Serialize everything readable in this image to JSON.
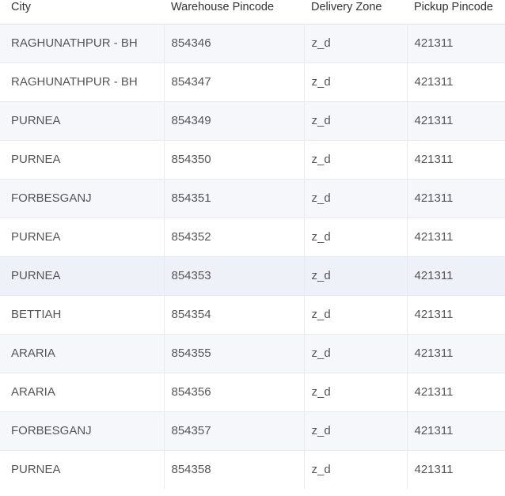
{
  "table": {
    "headers": {
      "city": "City",
      "warehouse_pincode": "Warehouse Pincode",
      "delivery_zone": "Delivery Zone",
      "pickup_pincode": "Pickup Pincode"
    },
    "rows": [
      {
        "city": "RAGHUNATHPUR - BH",
        "warehouse_pincode": "854346",
        "delivery_zone": "z_d",
        "pickup_pincode": "421311"
      },
      {
        "city": "RAGHUNATHPUR - BH",
        "warehouse_pincode": "854347",
        "delivery_zone": "z_d",
        "pickup_pincode": "421311"
      },
      {
        "city": "PURNEA",
        "warehouse_pincode": "854349",
        "delivery_zone": "z_d",
        "pickup_pincode": "421311"
      },
      {
        "city": "PURNEA",
        "warehouse_pincode": "854350",
        "delivery_zone": "z_d",
        "pickup_pincode": "421311"
      },
      {
        "city": "FORBESGANJ",
        "warehouse_pincode": "854351",
        "delivery_zone": "z_d",
        "pickup_pincode": "421311"
      },
      {
        "city": "PURNEA",
        "warehouse_pincode": "854352",
        "delivery_zone": "z_d",
        "pickup_pincode": "421311"
      },
      {
        "city": "PURNEA",
        "warehouse_pincode": "854353",
        "delivery_zone": "z_d",
        "pickup_pincode": "421311"
      },
      {
        "city": "BETTIAH",
        "warehouse_pincode": "854354",
        "delivery_zone": "z_d",
        "pickup_pincode": "421311"
      },
      {
        "city": "ARARIA",
        "warehouse_pincode": "854355",
        "delivery_zone": "z_d",
        "pickup_pincode": "421311"
      },
      {
        "city": "ARARIA",
        "warehouse_pincode": "854356",
        "delivery_zone": "z_d",
        "pickup_pincode": "421311"
      },
      {
        "city": "FORBESGANJ",
        "warehouse_pincode": "854357",
        "delivery_zone": "z_d",
        "pickup_pincode": "421311"
      },
      {
        "city": "PURNEA",
        "warehouse_pincode": "854358",
        "delivery_zone": "z_d",
        "pickup_pincode": "421311"
      }
    ]
  }
}
